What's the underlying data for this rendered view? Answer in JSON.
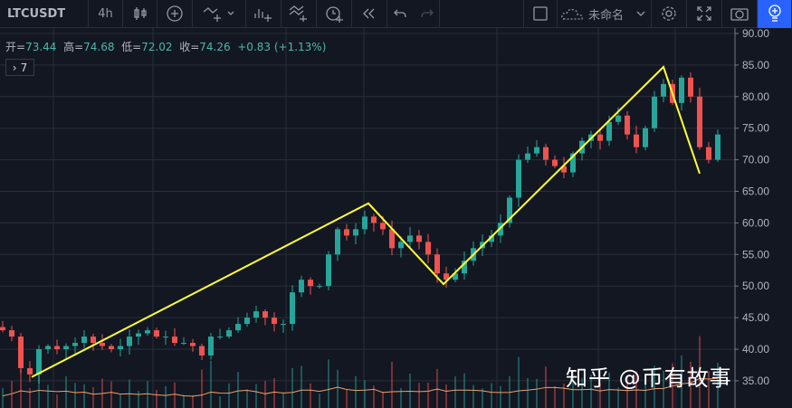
{
  "toolbar": {
    "symbol": "LTCUSDT",
    "interval": "4h",
    "layout_name": "未命名",
    "icons": [
      "candles-icon",
      "add-compare-icon",
      "indicators-icon",
      "chevron-down-icon",
      "financials-icon",
      "templates-icon",
      "alert-icon",
      "replay-icon",
      "undo-icon",
      "redo-icon",
      "square-icon",
      "cloud-icon",
      "gear-icon",
      "fullscreen-icon",
      "camera-icon",
      "idea-icon"
    ]
  },
  "legend": {
    "open_label": "开=",
    "open": "73.44",
    "high_label": "高=",
    "high": "74.68",
    "low_label": "低=",
    "low": "72.02",
    "close_label": "收=",
    "close": "74.26",
    "change": "+0.83 (+1.13%)"
  },
  "indicators_toggle": {
    "arrow": "›",
    "count": "7"
  },
  "watermark": "知乎 @币有故事",
  "colors": {
    "background": "#131722",
    "up": "#26a69a",
    "down": "#ef5350",
    "drawing": "#ffff33",
    "ma": "#f0a06a",
    "accent": "#2962ff"
  },
  "chart_data": {
    "type": "candlestick",
    "title": "",
    "ylim": [
      35,
      90
    ],
    "y_ticks": [
      "90.00",
      "85.00",
      "80.00",
      "75.00",
      "70.00",
      "65.00",
      "60.00",
      "55.00",
      "50.00",
      "45.00",
      "40.00",
      "35.00"
    ],
    "closes": [
      43,
      42,
      37,
      36,
      40,
      40.5,
      40,
      40.5,
      41,
      42,
      41,
      40.5,
      40,
      40.5,
      42,
      42.5,
      43,
      42,
      42,
      41,
      41,
      40.5,
      39,
      42,
      42,
      43,
      44,
      45,
      46,
      45,
      44,
      44,
      49,
      51,
      50,
      50,
      55,
      59,
      58,
      59,
      61,
      60,
      59,
      56,
      57,
      58,
      57,
      55,
      52,
      51,
      52,
      54,
      56,
      57,
      58,
      60,
      64,
      70,
      71,
      72,
      70,
      69,
      68,
      71,
      73,
      74,
      73,
      76,
      77,
      74,
      72,
      75,
      80,
      82,
      79,
      83,
      80,
      72,
      70,
      74
    ],
    "grid": true,
    "drawing_zigzag": [
      {
        "index": 3.2,
        "price": 35.6
      },
      {
        "index": 40.4,
        "price": 63.1
      },
      {
        "index": 48.7,
        "price": 50.3
      },
      {
        "index": 73,
        "price": 84.7
      },
      {
        "index": 77,
        "price": 67.8
      }
    ]
  }
}
